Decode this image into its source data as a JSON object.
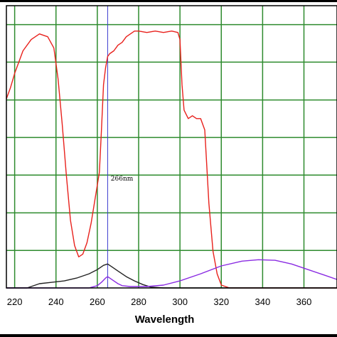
{
  "chart_data": {
    "type": "line",
    "title": "",
    "xlabel": "Wavelength",
    "ylabel": "",
    "xlim": [
      216,
      376
    ],
    "ylim": [
      0,
      100
    ],
    "x_ticks": [
      220,
      240,
      260,
      280,
      300,
      320,
      340,
      360
    ],
    "y_gridlines": [
      13.3,
      26.6,
      40,
      53.3,
      66.6,
      80,
      93.3
    ],
    "grid": true,
    "legend": "none",
    "colors": {
      "frame": "#000000",
      "grid": "#2e8b2e",
      "marker": "#3a3ad0",
      "background": "#ffffff"
    },
    "annotations": [
      {
        "text": "266nm",
        "x": 266.5,
        "y": 38
      }
    ],
    "marker_line": {
      "x": 265
    },
    "series": [
      {
        "color": "#e8211c",
        "x": [
          216,
          218,
          220,
          224,
          228,
          232,
          236,
          239,
          241,
          243,
          245,
          247,
          249,
          251,
          253,
          255,
          257,
          259,
          261,
          262,
          263,
          264,
          265,
          266,
          268,
          270,
          272,
          274,
          276,
          278,
          280,
          284,
          288,
          292,
          296,
          299,
          300,
          301,
          302,
          304,
          306,
          308,
          310,
          312,
          314,
          316,
          318,
          320,
          324,
          330,
          376
        ],
        "y": [
          67,
          71,
          76,
          84,
          88,
          90,
          89,
          85,
          74,
          58,
          40,
          24,
          15,
          11,
          12,
          16,
          23,
          32,
          41,
          56,
          72,
          78,
          82,
          83,
          84,
          86,
          87,
          89,
          90,
          91,
          91,
          90.5,
          91,
          90.5,
          91,
          90.5,
          88,
          72,
          63,
          60,
          61,
          60,
          60,
          56,
          30,
          13,
          5,
          1,
          0,
          0,
          0
        ]
      },
      {
        "color": "#222222",
        "x": [
          216,
          226,
          232,
          238,
          244,
          250,
          256,
          260,
          263,
          265,
          267,
          270,
          274,
          278,
          282,
          286,
          292,
          376
        ],
        "y": [
          0,
          0,
          1.5,
          2,
          2.5,
          3.5,
          5,
          6.5,
          8,
          8.5,
          7.5,
          6,
          4,
          2.5,
          1.2,
          0.3,
          0,
          0
        ]
      },
      {
        "color": "#8a2be2",
        "x": [
          216,
          256,
          260,
          262,
          264,
          265,
          266,
          268,
          270,
          272,
          276,
          284,
          292,
          300,
          310,
          320,
          330,
          338,
          346,
          354,
          362,
          370,
          376
        ],
        "y": [
          0,
          0,
          0.8,
          2,
          3.5,
          4,
          3.5,
          2.5,
          1.5,
          0.8,
          0.5,
          0.5,
          1,
          2.5,
          5,
          7.8,
          9.5,
          10,
          9.8,
          8.5,
          6.5,
          4.5,
          3
        ]
      }
    ]
  }
}
